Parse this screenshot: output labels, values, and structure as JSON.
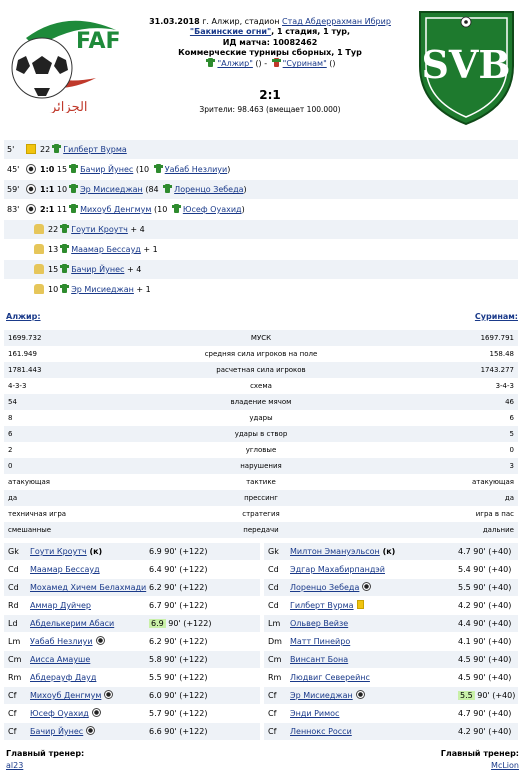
{
  "match": {
    "line1_date": "31.03.2018",
    "line1_place": " г. Алжир, стадион ",
    "stadium_link": "Стад Абдеррахман Ибрир",
    "line2_link": "\"Бакинские огни\"",
    "line2_rest": ", 1 стадия, 1 тур,",
    "match_id": "ИД матча: 10082462",
    "tournament": "Коммерческие турниры сборных, 1 Тур",
    "home_link": "\"Алжир\"",
    "home_paren": " () - ",
    "away_link": "\"Суринам\"",
    "away_paren": " ()",
    "score": "2:1",
    "spectators": "Зрители: 98.463 (вмещает 100.000)"
  },
  "logos": {
    "left_text": "الجزائر",
    "left_brand": "FAF",
    "right_text": "SVB"
  },
  "events": [
    {
      "minute": "5'",
      "icon": "yellow-card",
      "pre": "22",
      "name": "Гилберт Вурма",
      "mid": "",
      "sub": "",
      "tail": ""
    },
    {
      "minute": "45'",
      "icon": "ball",
      "score": "1:0",
      "pre": "15",
      "name": "Бачир Йунес",
      "mid": " (10 ",
      "sub": "Уабаб Незлиуи",
      "tail": ")"
    },
    {
      "minute": "59'",
      "icon": "ball",
      "score": "1:1",
      "pre": "10",
      "name": "Эр Мисиеджан",
      "mid": " (84 ",
      "sub": "Лоренцо Зебеда",
      "tail": ")"
    },
    {
      "minute": "83'",
      "icon": "ball",
      "score": "2:1",
      "pre": "11",
      "name": "Михоуб Денгмум",
      "mid": " (10 ",
      "sub": "Юсеф Оуахид",
      "tail": ")"
    },
    {
      "minute": "",
      "icon": "boot",
      "pre": "22",
      "name": "Гоути Кроутч",
      "mid": "",
      "sub": "",
      "tail": " + 4"
    },
    {
      "minute": "",
      "icon": "boot",
      "pre": "13",
      "name": "Маамар Бессауд",
      "mid": "",
      "sub": "",
      "tail": " + 1"
    },
    {
      "minute": "",
      "icon": "boot",
      "pre": "15",
      "name": "Бачир Йунес",
      "mid": "",
      "sub": "",
      "tail": " + 4"
    },
    {
      "minute": "",
      "icon": "boot",
      "pre": "10",
      "name": "Эр Мисиеджан",
      "mid": "",
      "sub": "",
      "tail": " + 1"
    }
  ],
  "teams": {
    "home": "Алжир:",
    "away": "Суринам:"
  },
  "stats": [
    {
      "l": "1699.732",
      "c": "МУСК",
      "r": "1697.791"
    },
    {
      "l": "161.949",
      "c": "средняя сила игроков на поле",
      "r": "158.48"
    },
    {
      "l": "1781.443",
      "c": "расчетная сила игроков",
      "r": "1743.277"
    },
    {
      "l": "4-3-3",
      "c": "схема",
      "r": "3-4-3"
    },
    {
      "l": "54",
      "c": "владение мячом",
      "r": "46"
    },
    {
      "l": "8",
      "c": "удары",
      "r": "6"
    },
    {
      "l": "6",
      "c": "удары в створ",
      "r": "5"
    },
    {
      "l": "2",
      "c": "угловые",
      "r": "0"
    },
    {
      "l": "0",
      "c": "нарушения",
      "r": "3"
    },
    {
      "l": "атакующая",
      "c": "тактике",
      "r": "атакующая"
    },
    {
      "l": "да",
      "c": "прессинг",
      "r": "да"
    },
    {
      "l": "техничная игра",
      "c": "стратегия",
      "r": "игра в пас"
    },
    {
      "l": "смешанные",
      "c": "передачи",
      "r": "дальние"
    }
  ],
  "home_lineup": [
    {
      "pos": "Gk",
      "name": "Гоути Кроутч",
      "extra": " (к)",
      "icon": "",
      "rating": "6.9",
      "min": "90'",
      "delta": "(+122)",
      "hl": false
    },
    {
      "pos": "Cd",
      "name": "Маамар Бессауд",
      "extra": "",
      "icon": "",
      "rating": "6.4",
      "min": "90'",
      "delta": "(+122)",
      "hl": false
    },
    {
      "pos": "Cd",
      "name": "Мохамед Хичем Белахмади",
      "extra": "",
      "icon": "",
      "rating": "6.2",
      "min": "90'",
      "delta": "(+122)",
      "hl": false
    },
    {
      "pos": "Rd",
      "name": "Аммар Дуйчер",
      "extra": "",
      "icon": "",
      "rating": "6.7",
      "min": "90'",
      "delta": "(+122)",
      "hl": false
    },
    {
      "pos": "Ld",
      "name": "Абделькерим Абаси",
      "extra": "",
      "icon": "",
      "rating": "6.9",
      "min": "90'",
      "delta": "(+122)",
      "hl": true
    },
    {
      "pos": "Lm",
      "name": "Уабаб Незлиуи",
      "extra": "",
      "icon": "ball",
      "rating": "6.2",
      "min": "90'",
      "delta": "(+122)",
      "hl": false
    },
    {
      "pos": "Cm",
      "name": "Аисса Амауше",
      "extra": "",
      "icon": "",
      "rating": "5.8",
      "min": "90'",
      "delta": "(+122)",
      "hl": false
    },
    {
      "pos": "Rm",
      "name": "Абдерауф Дауд",
      "extra": "",
      "icon": "",
      "rating": "5.5",
      "min": "90'",
      "delta": "(+122)",
      "hl": false
    },
    {
      "pos": "Cf",
      "name": "Михоуб Денгмум",
      "extra": "",
      "icon": "ball",
      "rating": "6.0",
      "min": "90'",
      "delta": "(+122)",
      "hl": false
    },
    {
      "pos": "Cf",
      "name": "Юсеф Оуахид",
      "extra": "",
      "icon": "ball",
      "rating": "5.7",
      "min": "90'",
      "delta": "(+122)",
      "hl": false
    },
    {
      "pos": "Cf",
      "name": "Бачир Йунес",
      "extra": "",
      "icon": "ball",
      "rating": "6.6",
      "min": "90'",
      "delta": "(+122)",
      "hl": false
    }
  ],
  "away_lineup": [
    {
      "pos": "Gk",
      "name": "Милтон Эмануэльсон",
      "extra": " (к)",
      "icon": "",
      "rating": "4.7",
      "min": "90'",
      "delta": "(+40)",
      "hl": false
    },
    {
      "pos": "Cd",
      "name": "Эдгар Махабирпандэй",
      "extra": "",
      "icon": "",
      "rating": "5.4",
      "min": "90'",
      "delta": "(+40)",
      "hl": false
    },
    {
      "pos": "Cd",
      "name": "Лоренцо Зебеда",
      "extra": "",
      "icon": "ball",
      "rating": "5.5",
      "min": "90'",
      "delta": "(+40)",
      "hl": false
    },
    {
      "pos": "Cd",
      "name": "Гилберт Вурма",
      "extra": "",
      "icon": "yellow",
      "rating": "4.2",
      "min": "90'",
      "delta": "(+40)",
      "hl": false
    },
    {
      "pos": "Lm",
      "name": "Ольвер Вейзе",
      "extra": "",
      "icon": "",
      "rating": "4.4",
      "min": "90'",
      "delta": "(+40)",
      "hl": false
    },
    {
      "pos": "Dm",
      "name": "Матт Пинейро",
      "extra": "",
      "icon": "",
      "rating": "4.1",
      "min": "90'",
      "delta": "(+40)",
      "hl": false
    },
    {
      "pos": "Cm",
      "name": "Винсант Бона",
      "extra": "",
      "icon": "",
      "rating": "4.5",
      "min": "90'",
      "delta": "(+40)",
      "hl": false
    },
    {
      "pos": "Rm",
      "name": "Людвиг Северейнс",
      "extra": "",
      "icon": "",
      "rating": "4.5",
      "min": "90'",
      "delta": "(+40)",
      "hl": false
    },
    {
      "pos": "Cf",
      "name": "Эр Мисиеджан",
      "extra": "",
      "icon": "ball",
      "rating": "5.5",
      "min": "90'",
      "delta": "(+40)",
      "hl": true
    },
    {
      "pos": "Cf",
      "name": "Энди Римос",
      "extra": "",
      "icon": "",
      "rating": "4.7",
      "min": "90'",
      "delta": "(+40)",
      "hl": false
    },
    {
      "pos": "Cf",
      "name": "Леннокс Росси",
      "extra": "",
      "icon": "",
      "rating": "4.2",
      "min": "90'",
      "delta": "(+40)",
      "hl": false
    }
  ],
  "coaches": {
    "label": "Главный тренер:",
    "home": "al23",
    "away": "McLion"
  },
  "colors": {
    "link": "#1a3a8a",
    "row_alt": "#eef2f7",
    "highlight": "#c9f0a8",
    "svb_green": "#1e7a2e"
  }
}
